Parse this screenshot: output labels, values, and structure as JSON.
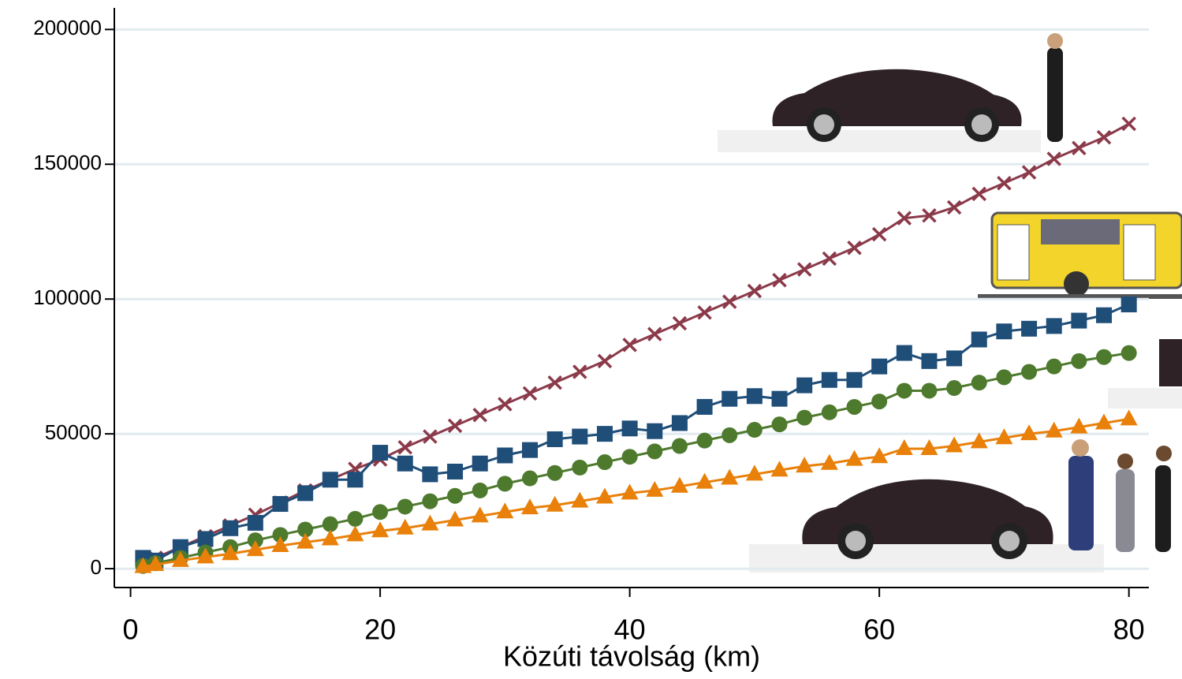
{
  "chart_data": {
    "type": "line",
    "x_label": "Közúti távolság (km)",
    "x": [
      1,
      2,
      4,
      6,
      8,
      10,
      12,
      14,
      16,
      18,
      20,
      22,
      24,
      26,
      28,
      30,
      32,
      34,
      36,
      38,
      40,
      42,
      44,
      46,
      48,
      50,
      52,
      54,
      56,
      58,
      60,
      62,
      64,
      66,
      68,
      70,
      72,
      74,
      76,
      78,
      80
    ],
    "series": [
      {
        "color": "#8b3a4a",
        "marker": "x",
        "values": [
          2000,
          4000,
          8000,
          12000,
          16000,
          20000,
          24500,
          29000,
          33000,
          37000,
          40500,
          45000,
          49000,
          53000,
          57000,
          61000,
          65000,
          69000,
          73000,
          77000,
          83000,
          87000,
          91000,
          95000,
          99000,
          103000,
          107000,
          111000,
          115000,
          119000,
          124000,
          130000,
          131000,
          134000,
          139000,
          143000,
          147000,
          152000,
          156000,
          160000,
          165000
        ]
      },
      {
        "color": "#1f4e79",
        "marker": "square",
        "values": [
          4000,
          3000,
          8000,
          11000,
          15000,
          17000,
          24000,
          28000,
          33000,
          33000,
          43000,
          39000,
          35000,
          36000,
          39000,
          42000,
          44000,
          48000,
          49000,
          50000,
          52000,
          51000,
          54000,
          60000,
          63000,
          64000,
          63000,
          68000,
          70000,
          70000,
          75000,
          80000,
          77000,
          78000,
          85000,
          88000,
          89000,
          90000,
          92000,
          94000,
          98000
        ]
      },
      {
        "color": "#4e7a2e",
        "marker": "circle",
        "values": [
          1000,
          2000,
          4000,
          6000,
          8000,
          10500,
          12500,
          14500,
          16500,
          18500,
          21000,
          23000,
          25000,
          27000,
          29000,
          31500,
          33500,
          35500,
          37500,
          39500,
          41500,
          43500,
          45500,
          47500,
          49500,
          51500,
          53500,
          56000,
          58000,
          60000,
          62000,
          66000,
          66000,
          67000,
          69000,
          71000,
          73000,
          75000,
          77000,
          78500,
          80000
        ]
      },
      {
        "color": "#e8800a",
        "marker": "triangle",
        "values": [
          700,
          1500,
          3000,
          4300,
          5500,
          7000,
          8500,
          9800,
          11000,
          12500,
          14000,
          15000,
          16500,
          18000,
          19500,
          21000,
          22500,
          23500,
          25000,
          26500,
          28000,
          29000,
          30500,
          32000,
          33500,
          35000,
          36500,
          38000,
          39000,
          40500,
          41500,
          44500,
          44500,
          45500,
          47000,
          48500,
          50000,
          51000,
          52500,
          54000,
          55500
        ]
      }
    ],
    "xlim": [
      -1.3,
      81.6
    ],
    "xticks": [
      0,
      20,
      40,
      60,
      80
    ],
    "ylim": [
      -7000,
      208000
    ],
    "yticks": [
      0,
      50000,
      100000,
      150000,
      200000
    ],
    "grid": true,
    "grid_color": "#e1ebf0"
  }
}
